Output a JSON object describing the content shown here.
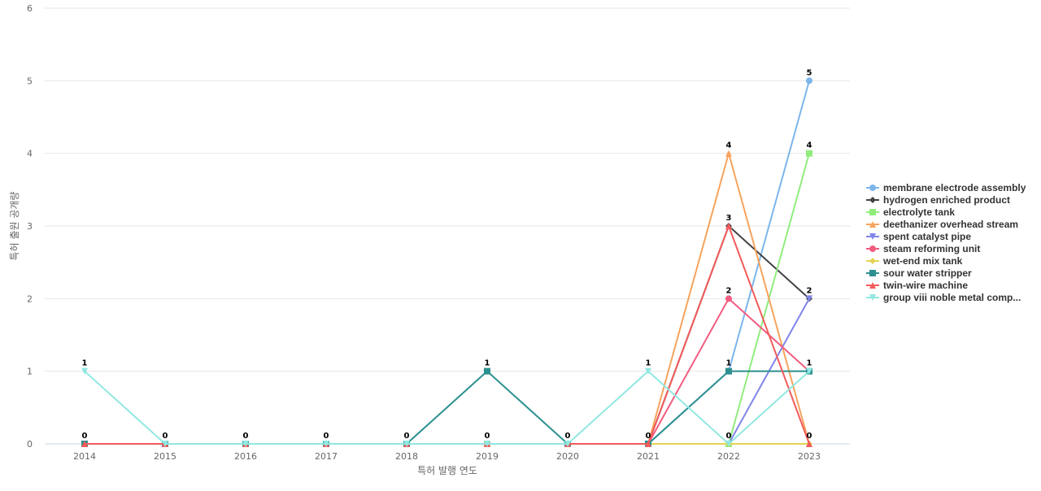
{
  "chart_data": {
    "type": "line",
    "title": "",
    "xlabel": "특허 발행 연도",
    "ylabel": "특허 출원 공개량",
    "categories": [
      "2014",
      "2015",
      "2016",
      "2017",
      "2018",
      "2019",
      "2020",
      "2021",
      "2022",
      "2023"
    ],
    "ylim": [
      0,
      6
    ],
    "yticks": [
      "0",
      "1",
      "2",
      "3",
      "4",
      "5",
      "6"
    ],
    "grid": true,
    "legend_position": "right",
    "series": [
      {
        "name": "membrane electrode assembly",
        "color": "#7cb5ec",
        "marker": "circle",
        "values": [
          0,
          0,
          0,
          0,
          0,
          0,
          0,
          0,
          1,
          5
        ]
      },
      {
        "name": "hydrogen enriched product",
        "color": "#434348",
        "marker": "diamond",
        "values": [
          0,
          0,
          0,
          0,
          0,
          0,
          0,
          0,
          3,
          2
        ]
      },
      {
        "name": "electrolyte tank",
        "color": "#90ed7d",
        "marker": "square",
        "values": [
          0,
          0,
          0,
          0,
          0,
          0,
          0,
          0,
          0,
          4
        ]
      },
      {
        "name": "deethanizer overhead stream",
        "color": "#f7a35c",
        "marker": "triangle",
        "values": [
          0,
          0,
          0,
          0,
          0,
          0,
          0,
          0,
          4,
          0
        ]
      },
      {
        "name": "spent catalyst pipe",
        "color": "#8085e9",
        "marker": "triangle-down",
        "values": [
          0,
          0,
          0,
          0,
          0,
          0,
          0,
          0,
          0,
          2
        ]
      },
      {
        "name": "steam reforming unit",
        "color": "#f15c80",
        "marker": "circle",
        "values": [
          0,
          0,
          0,
          0,
          0,
          0,
          0,
          0,
          2,
          1
        ]
      },
      {
        "name": "wet-end mix tank",
        "color": "#e4d354",
        "marker": "diamond",
        "values": [
          0,
          0,
          0,
          0,
          0,
          0,
          0,
          0,
          0,
          0
        ]
      },
      {
        "name": "sour water stripper",
        "color": "#2b908f",
        "marker": "square",
        "values": [
          0,
          0,
          0,
          0,
          0,
          1,
          0,
          0,
          1,
          1
        ]
      },
      {
        "name": "twin-wire machine",
        "color": "#f45b5b",
        "marker": "triangle",
        "values": [
          0,
          0,
          0,
          0,
          0,
          0,
          0,
          0,
          3,
          0
        ]
      },
      {
        "name": "group viii noble metal comp...",
        "color": "#91e8e1",
        "marker": "triangle-down",
        "values": [
          1,
          0,
          0,
          0,
          0,
          0,
          0,
          1,
          0,
          1
        ]
      }
    ],
    "data_labels": [
      {
        "category": "2014",
        "value": 1,
        "text": "1"
      },
      {
        "category": "2014",
        "value": 0,
        "text": "0"
      },
      {
        "category": "2015",
        "value": 0,
        "text": "0"
      },
      {
        "category": "2016",
        "value": 0,
        "text": "0"
      },
      {
        "category": "2017",
        "value": 0,
        "text": "0"
      },
      {
        "category": "2018",
        "value": 0,
        "text": "0"
      },
      {
        "category": "2019",
        "value": 1,
        "text": "1"
      },
      {
        "category": "2019",
        "value": 0,
        "text": "0"
      },
      {
        "category": "2020",
        "value": 0,
        "text": "0"
      },
      {
        "category": "2021",
        "value": 1,
        "text": "1"
      },
      {
        "category": "2021",
        "value": 0,
        "text": "0"
      },
      {
        "category": "2022",
        "value": 4,
        "text": "4"
      },
      {
        "category": "2022",
        "value": 3,
        "text": "3"
      },
      {
        "category": "2022",
        "value": 2,
        "text": "2"
      },
      {
        "category": "2022",
        "value": 1,
        "text": "1"
      },
      {
        "category": "2022",
        "value": 0,
        "text": "0"
      },
      {
        "category": "2023",
        "value": 5,
        "text": "5"
      },
      {
        "category": "2023",
        "value": 4,
        "text": "4"
      },
      {
        "category": "2023",
        "value": 2,
        "text": "2"
      },
      {
        "category": "2023",
        "value": 1,
        "text": "1"
      },
      {
        "category": "2023",
        "value": 0,
        "text": "0"
      }
    ]
  }
}
